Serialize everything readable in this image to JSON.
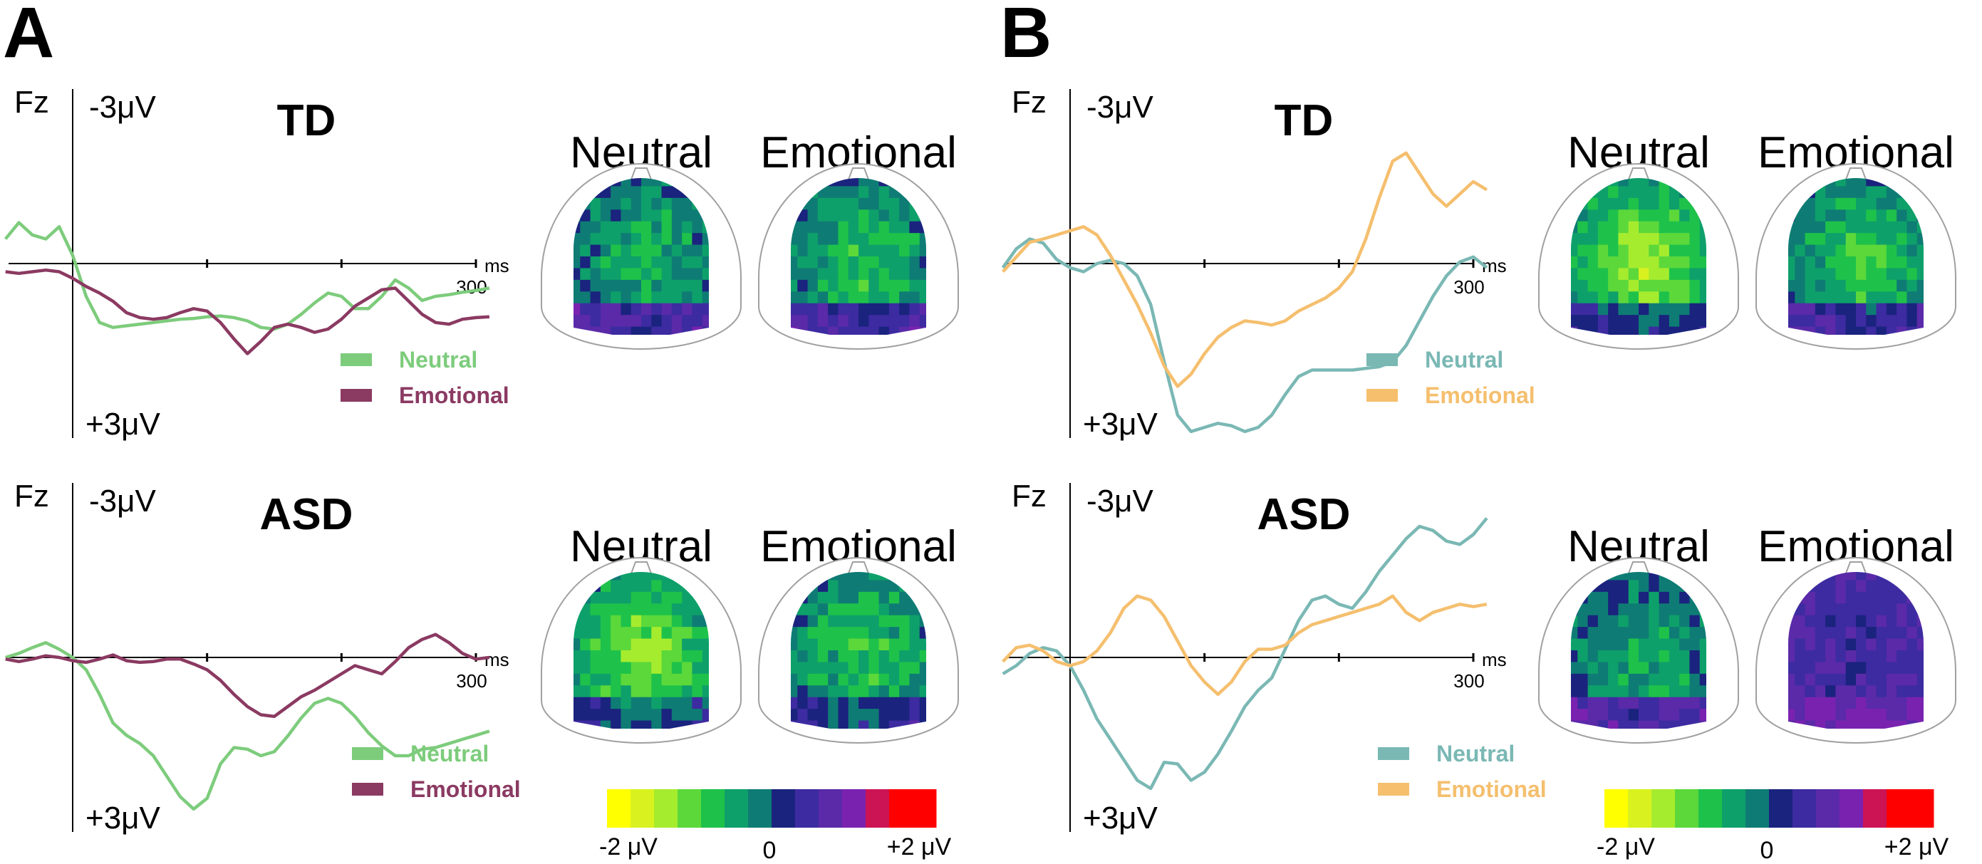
{
  "figure": {
    "panels": [
      {
        "letter": "A",
        "neutral_color": "#7dcc7c",
        "emotional_color": "#8b3a62",
        "groups": [
          {
            "title": "TD",
            "channel": "Fz",
            "ytop_label": "-3μV",
            "ybottom_label": "+3μV",
            "xunit": "ms",
            "xend_label": "300",
            "legend": [
              "Neutral",
              "Emotional"
            ],
            "head_titles": [
              "Neutral",
              "Emotional"
            ]
          },
          {
            "title": "ASD",
            "channel": "Fz",
            "ytop_label": "-3μV",
            "ybottom_label": "+3μV",
            "xunit": "ms",
            "xend_label": "300",
            "legend": [
              "Neutral",
              "Emotional"
            ],
            "head_titles": [
              "Neutral",
              "Emotional"
            ]
          }
        ],
        "colorbar": {
          "labels": [
            "-2 μV",
            "0",
            "+2 μV"
          ]
        }
      },
      {
        "letter": "B",
        "neutral_color": "#7ab8b4",
        "emotional_color": "#f5bf6e",
        "groups": [
          {
            "title": "TD",
            "channel": "Fz",
            "ytop_label": "-3μV",
            "ybottom_label": "+3μV",
            "xunit": "ms",
            "xend_label": "300",
            "legend": [
              "Neutral",
              "Emotional"
            ],
            "head_titles": [
              "Neutral",
              "Emotional"
            ]
          },
          {
            "title": "ASD",
            "channel": "Fz",
            "ytop_label": "-3μV",
            "ybottom_label": "+3μV",
            "xunit": "ms",
            "xend_label": "300",
            "legend": [
              "Neutral",
              "Emotional"
            ],
            "head_titles": [
              "Neutral",
              "Emotional"
            ]
          }
        ],
        "colorbar": {
          "labels": [
            "-2 μV",
            "0",
            "+2 μV"
          ]
        }
      }
    ]
  },
  "chart_data": [
    {
      "type": "line",
      "panel": "A",
      "title": "TD",
      "xlabel": "ms",
      "ylabel": "Fz",
      "xlim": [
        -50,
        310
      ],
      "ylim": [
        3,
        -3
      ],
      "x": [
        -50,
        -40,
        -30,
        -20,
        -10,
        0,
        10,
        20,
        30,
        40,
        50,
        60,
        70,
        80,
        90,
        100,
        110,
        120,
        130,
        140,
        150,
        160,
        170,
        180,
        190,
        200,
        210,
        220,
        230,
        240,
        250,
        260,
        270,
        280,
        290,
        300,
        310
      ],
      "series": [
        {
          "name": "Neutral",
          "color": "#7dcc7c",
          "values": [
            -0.3,
            -0.5,
            -0.35,
            -0.3,
            -0.45,
            -0.1,
            0.4,
            0.72,
            0.78,
            0.76,
            0.74,
            0.72,
            0.7,
            0.68,
            0.67,
            0.65,
            0.64,
            0.66,
            0.7,
            0.78,
            0.8,
            0.74,
            0.62,
            0.48,
            0.36,
            0.4,
            0.55,
            0.55,
            0.4,
            0.2,
            0.3,
            0.45,
            0.4,
            0.38,
            0.35,
            0.33,
            0.3
          ]
        },
        {
          "name": "Emotional",
          "color": "#8b3a62",
          "values": [
            0.1,
            0.12,
            0.1,
            0.08,
            0.1,
            0.18,
            0.28,
            0.36,
            0.46,
            0.6,
            0.66,
            0.68,
            0.66,
            0.6,
            0.55,
            0.58,
            0.72,
            0.92,
            1.1,
            0.95,
            0.78,
            0.74,
            0.78,
            0.84,
            0.8,
            0.68,
            0.52,
            0.42,
            0.32,
            0.3,
            0.46,
            0.62,
            0.72,
            0.74,
            0.68,
            0.66,
            0.65
          ]
        }
      ]
    },
    {
      "type": "line",
      "panel": "A",
      "title": "ASD",
      "xlabel": "ms",
      "ylabel": "Fz",
      "xlim": [
        -50,
        310
      ],
      "ylim": [
        3,
        -3
      ],
      "x": [
        -50,
        -40,
        -30,
        -20,
        -10,
        0,
        10,
        20,
        30,
        40,
        50,
        60,
        70,
        80,
        90,
        100,
        110,
        120,
        130,
        140,
        150,
        160,
        170,
        180,
        190,
        200,
        210,
        220,
        230,
        240,
        250,
        260,
        270,
        280,
        290,
        300,
        310
      ],
      "series": [
        {
          "name": "Neutral",
          "color": "#7dcc7c",
          "values": [
            0,
            -0.05,
            -0.12,
            -0.18,
            -0.1,
            0,
            0.15,
            0.45,
            0.8,
            0.95,
            1.05,
            1.2,
            1.45,
            1.7,
            1.85,
            1.72,
            1.3,
            1.1,
            1.12,
            1.2,
            1.15,
            0.96,
            0.74,
            0.56,
            0.5,
            0.56,
            0.72,
            0.92,
            1.08,
            1.2,
            1.2,
            1.12,
            1.1,
            1.05,
            1,
            0.95,
            0.9
          ]
        },
        {
          "name": "Emotional",
          "color": "#8b3a62",
          "values": [
            0.02,
            0.05,
            0.02,
            -0.02,
            0,
            0.04,
            0.06,
            0.02,
            -0.03,
            0.04,
            0.06,
            0.05,
            0.02,
            0.02,
            0.08,
            0.15,
            0.28,
            0.45,
            0.6,
            0.7,
            0.72,
            0.6,
            0.48,
            0.4,
            0.3,
            0.2,
            0.1,
            0.15,
            0.2,
            0.05,
            -0.12,
            -0.22,
            -0.28,
            -0.18,
            -0.05,
            0.02,
            0
          ]
        }
      ]
    },
    {
      "type": "line",
      "panel": "B",
      "title": "TD",
      "xlabel": "ms",
      "ylabel": "Fz",
      "xlim": [
        -50,
        310
      ],
      "ylim": [
        3,
        -3
      ],
      "x": [
        -50,
        -40,
        -30,
        -20,
        -10,
        0,
        10,
        20,
        30,
        40,
        50,
        60,
        70,
        80,
        90,
        100,
        110,
        120,
        130,
        140,
        150,
        160,
        170,
        180,
        190,
        200,
        210,
        220,
        230,
        240,
        250,
        260,
        270,
        280,
        290,
        300,
        310
      ],
      "series": [
        {
          "name": "Neutral",
          "color": "#7ab8b4",
          "values": [
            0.05,
            -0.18,
            -0.3,
            -0.25,
            -0.05,
            0.05,
            0.1,
            0.0,
            -0.04,
            0.0,
            0.15,
            0.5,
            1.2,
            1.85,
            2.05,
            2.0,
            1.95,
            1.98,
            2.05,
            2.0,
            1.85,
            1.6,
            1.38,
            1.3,
            1.3,
            1.3,
            1.3,
            1.28,
            1.26,
            1.2,
            1.0,
            0.7,
            0.4,
            0.15,
            -0.02,
            -0.08,
            0.05
          ]
        },
        {
          "name": "Emotional",
          "color": "#f5bf6e",
          "values": [
            0.1,
            -0.08,
            -0.26,
            -0.3,
            -0.35,
            -0.4,
            -0.45,
            -0.35,
            -0.1,
            0.2,
            0.5,
            0.85,
            1.25,
            1.5,
            1.35,
            1.1,
            0.9,
            0.78,
            0.7,
            0.72,
            0.75,
            0.7,
            0.58,
            0.5,
            0.42,
            0.3,
            0.1,
            -0.3,
            -0.8,
            -1.25,
            -1.35,
            -1.1,
            -0.85,
            -0.7,
            -0.85,
            -1.0,
            -0.9
          ]
        }
      ]
    },
    {
      "type": "line",
      "panel": "B",
      "title": "ASD",
      "xlabel": "ms",
      "ylabel": "Fz",
      "xlim": [
        -50,
        310
      ],
      "ylim": [
        3,
        -3
      ],
      "x": [
        -50,
        -40,
        -30,
        -20,
        -10,
        0,
        10,
        20,
        30,
        40,
        50,
        60,
        70,
        80,
        90,
        100,
        110,
        120,
        130,
        140,
        150,
        160,
        170,
        180,
        190,
        200,
        210,
        220,
        230,
        240,
        250,
        260,
        270,
        280,
        290,
        300,
        310
      ],
      "series": [
        {
          "name": "Neutral",
          "color": "#7ab8b4",
          "values": [
            0.2,
            0.1,
            -0.05,
            -0.12,
            -0.08,
            0.1,
            0.4,
            0.75,
            1.0,
            1.25,
            1.5,
            1.6,
            1.28,
            1.3,
            1.5,
            1.4,
            1.18,
            0.9,
            0.6,
            0.4,
            0.25,
            -0.1,
            -0.45,
            -0.7,
            -0.75,
            -0.65,
            -0.6,
            -0.8,
            -1.05,
            -1.25,
            -1.45,
            -1.6,
            -1.55,
            -1.42,
            -1.38,
            -1.5,
            -1.7
          ]
        },
        {
          "name": "Emotional",
          "color": "#f5bf6e",
          "values": [
            0.05,
            -0.12,
            -0.15,
            -0.08,
            0.05,
            0.1,
            0.05,
            -0.08,
            -0.3,
            -0.6,
            -0.75,
            -0.7,
            -0.5,
            -0.2,
            0.1,
            0.3,
            0.45,
            0.3,
            0.05,
            -0.1,
            -0.1,
            -0.15,
            -0.3,
            -0.4,
            -0.45,
            -0.5,
            -0.55,
            -0.6,
            -0.65,
            -0.75,
            -0.55,
            -0.45,
            -0.55,
            -0.6,
            -0.65,
            -0.62,
            -0.65
          ]
        }
      ]
    }
  ],
  "topomap_colors": [
    "#ffff00",
    "#d9f21f",
    "#a6ec2e",
    "#5cd83a",
    "#1ec24a",
    "#0ea06a",
    "#0e7c74",
    "#1a237e",
    "#3d2ba1",
    "#5a2aa8",
    "#7a22b0",
    "#a11c8e",
    "#cc1455",
    "#ff0000",
    "#ff0000"
  ]
}
